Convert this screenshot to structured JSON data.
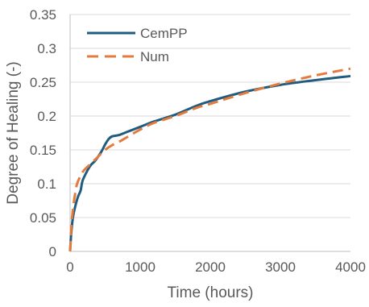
{
  "chart_data": {
    "type": "line",
    "xlabel": "Time (hours)",
    "ylabel": "Degree of Healing (-)",
    "xlim": [
      0,
      4000
    ],
    "ylim": [
      0,
      0.35
    ],
    "xticks": [
      0,
      1000,
      2000,
      3000,
      4000
    ],
    "xtick_labels": [
      "0",
      "1000",
      "2000",
      "3000",
      "4000"
    ],
    "yticks": [
      0,
      0.05,
      0.1,
      0.15,
      0.2,
      0.25,
      0.3,
      0.35
    ],
    "ytick_labels": [
      "0",
      "0.05",
      "0.1",
      "0.15",
      "0.2",
      "0.25",
      "0.3",
      "0.35"
    ],
    "grid": "horizontal",
    "legend_position": "top-left",
    "series": [
      {
        "name": "CemPP",
        "color": "#1f5c7f",
        "style": "solid",
        "points": [
          [
            0,
            0
          ],
          [
            15,
            0.025
          ],
          [
            40,
            0.05
          ],
          [
            70,
            0.065
          ],
          [
            110,
            0.08
          ],
          [
            150,
            0.09
          ],
          [
            180,
            0.105
          ],
          [
            250,
            0.12
          ],
          [
            300,
            0.128
          ],
          [
            350,
            0.133
          ],
          [
            400,
            0.14
          ],
          [
            450,
            0.148
          ],
          [
            500,
            0.158
          ],
          [
            550,
            0.166
          ],
          [
            600,
            0.17
          ],
          [
            700,
            0.172
          ],
          [
            800,
            0.176
          ],
          [
            1000,
            0.184
          ],
          [
            1200,
            0.192
          ],
          [
            1500,
            0.202
          ],
          [
            1800,
            0.215
          ],
          [
            2000,
            0.222
          ],
          [
            2500,
            0.236
          ],
          [
            3000,
            0.246
          ],
          [
            3500,
            0.253
          ],
          [
            4000,
            0.259
          ]
        ]
      },
      {
        "name": "Num",
        "color": "#e37b3f",
        "style": "dashed",
        "points": [
          [
            0,
            0
          ],
          [
            20,
            0.04
          ],
          [
            50,
            0.07
          ],
          [
            80,
            0.09
          ],
          [
            100,
            0.1
          ],
          [
            150,
            0.112
          ],
          [
            200,
            0.12
          ],
          [
            300,
            0.13
          ],
          [
            400,
            0.14
          ],
          [
            500,
            0.15
          ],
          [
            600,
            0.157
          ],
          [
            700,
            0.162
          ],
          [
            800,
            0.168
          ],
          [
            1000,
            0.18
          ],
          [
            1200,
            0.19
          ],
          [
            1500,
            0.2
          ],
          [
            1800,
            0.212
          ],
          [
            2000,
            0.218
          ],
          [
            2500,
            0.234
          ],
          [
            3000,
            0.248
          ],
          [
            3500,
            0.26
          ],
          [
            4000,
            0.27
          ]
        ]
      }
    ]
  },
  "colors": {
    "grid": "#d9d9d9",
    "axis": "#bfbfbf",
    "text": "#595959"
  }
}
